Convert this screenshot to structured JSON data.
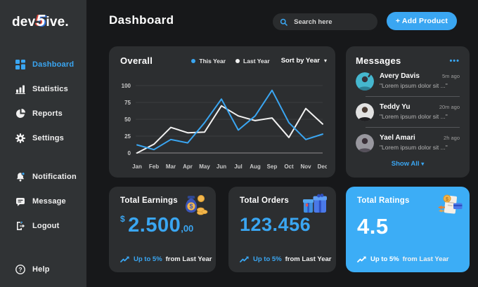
{
  "app": {
    "logo": {
      "prefix": "dev",
      "five": "5",
      "suffix": "ive."
    }
  },
  "header": {
    "title": "Dashboard",
    "search_placeholder": "Search here",
    "add_product_label": "+ Add Product"
  },
  "sidebar": {
    "items": [
      {
        "label": "Dashboard",
        "icon": "grid-icon",
        "active": true
      },
      {
        "label": "Statistics",
        "icon": "bar-chart-icon"
      },
      {
        "label": "Reports",
        "icon": "pie-chart-icon"
      },
      {
        "label": "Settings",
        "icon": "gear-icon"
      },
      {
        "label": "Notification",
        "icon": "bell-icon"
      },
      {
        "label": "Message",
        "icon": "chat-icon"
      },
      {
        "label": "Logout",
        "icon": "logout-icon"
      },
      {
        "label": "Help",
        "icon": "help-icon"
      }
    ]
  },
  "overall": {
    "title": "Overall",
    "sort_label": "Sort by Year",
    "sort_caret": "▾"
  },
  "chart_data": {
    "type": "line",
    "title": "Overall",
    "x": [
      "Jan",
      "Feb",
      "Mar",
      "Apr",
      "May",
      "Jun",
      "Jul",
      "Aug",
      "Sep",
      "Oct",
      "Nov",
      "Dec"
    ],
    "series": [
      {
        "name": "This Year",
        "color": "#3aa6f2",
        "values": [
          12,
          5,
          20,
          15,
          45,
          80,
          34,
          55,
          93,
          45,
          20,
          28
        ]
      },
      {
        "name": "Last Year",
        "color": "#f2f2f2",
        "values": [
          0,
          13,
          38,
          30,
          31,
          70,
          55,
          48,
          52,
          23,
          66,
          43
        ]
      }
    ],
    "ylim": [
      0,
      100
    ],
    "yticks": [
      0,
      25,
      50,
      75,
      100
    ],
    "grid": true,
    "legend_position": "top"
  },
  "messages": {
    "title": "Messages",
    "menu_dots": "•••",
    "items": [
      {
        "name": "Avery Davis",
        "time": "5m ago",
        "text": "\"Lorem ipsum dolor sit ...\""
      },
      {
        "name": "Teddy Yu",
        "time": "20m ago",
        "text": "\"Lorem ipsum dolor sit ...\""
      },
      {
        "name": "Yael Amari",
        "time": "2h ago",
        "text": "\"Lorem ipsum dolor sit ...\""
      }
    ],
    "show_all_label": "Show All",
    "show_all_caret": "▾"
  },
  "stats": [
    {
      "title": "Total Earnings",
      "currency": "$",
      "value": "2.500",
      "decimals": ",00",
      "trend_highlight": "Up to 5%",
      "trend_rest": "from Last Year",
      "icon": "money-bag-icon"
    },
    {
      "title": "Total Orders",
      "value": "123.456",
      "trend_highlight": "Up to 5%",
      "trend_rest": "from Last Year",
      "icon": "gift-boxes-icon"
    },
    {
      "title": "Total Ratings",
      "value": "4.5",
      "trend_highlight": "Up to 5%",
      "trend_rest": "from Last Year",
      "icon": "receipt-coin-icon"
    }
  ],
  "colors": {
    "accent": "#3aa6f2",
    "ratings_card_bg": "#3cadf6",
    "card_bg": "#2c2e30",
    "sidebar_bg": "#303335",
    "page_bg": "#17181a",
    "line_this_year": "#3aa6f2",
    "line_last_year": "#f2f2f2"
  }
}
